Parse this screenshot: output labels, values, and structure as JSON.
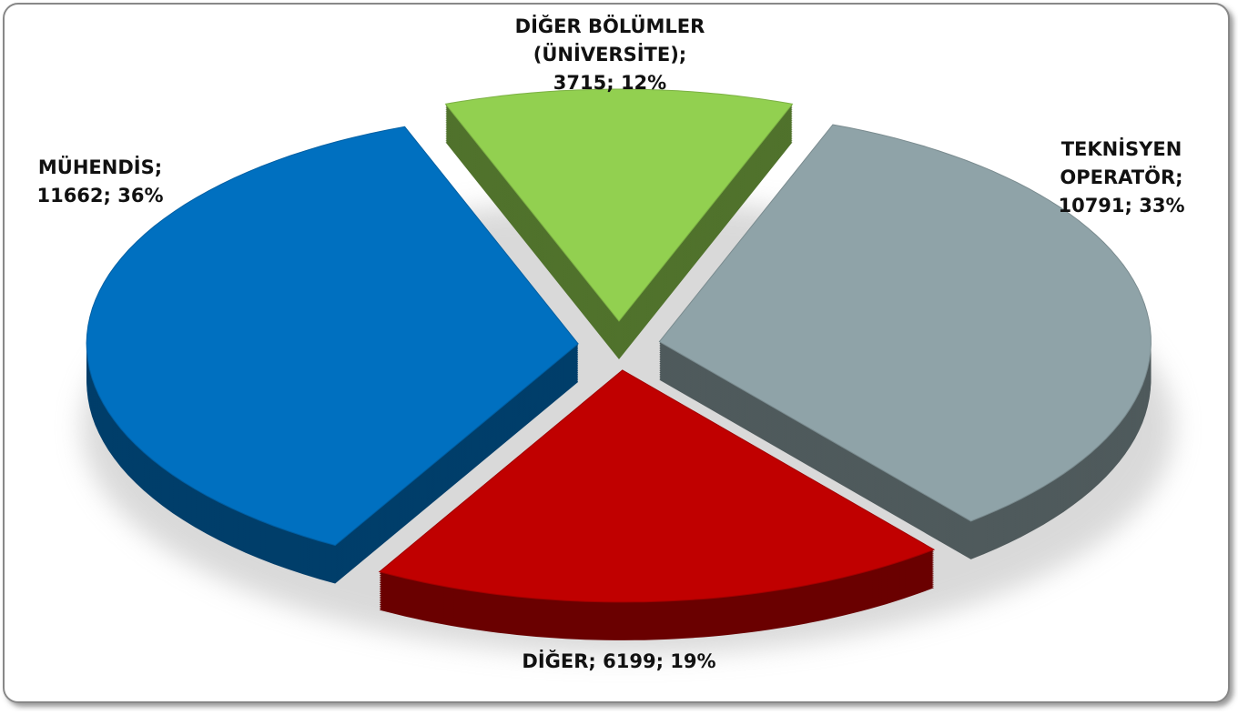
{
  "chart_data": {
    "type": "pie",
    "values": [
      11662,
      3715,
      10791,
      6199
    ],
    "value_labels": [
      [
        "MÜHENDİS;",
        "11662; 36%"
      ],
      [
        "DİĞER BÖLÜMLER",
        "(ÜNİVERSİTE);",
        "3715; 12%"
      ],
      [
        "TEKNİSYEN",
        "OPERATÖR;",
        "10791; 33%"
      ],
      [
        "DİĞER; 6199; 19%"
      ]
    ],
    "colors": [
      "#0070c0",
      "#92d050",
      "#8fa3a8",
      "#c00000"
    ]
  }
}
